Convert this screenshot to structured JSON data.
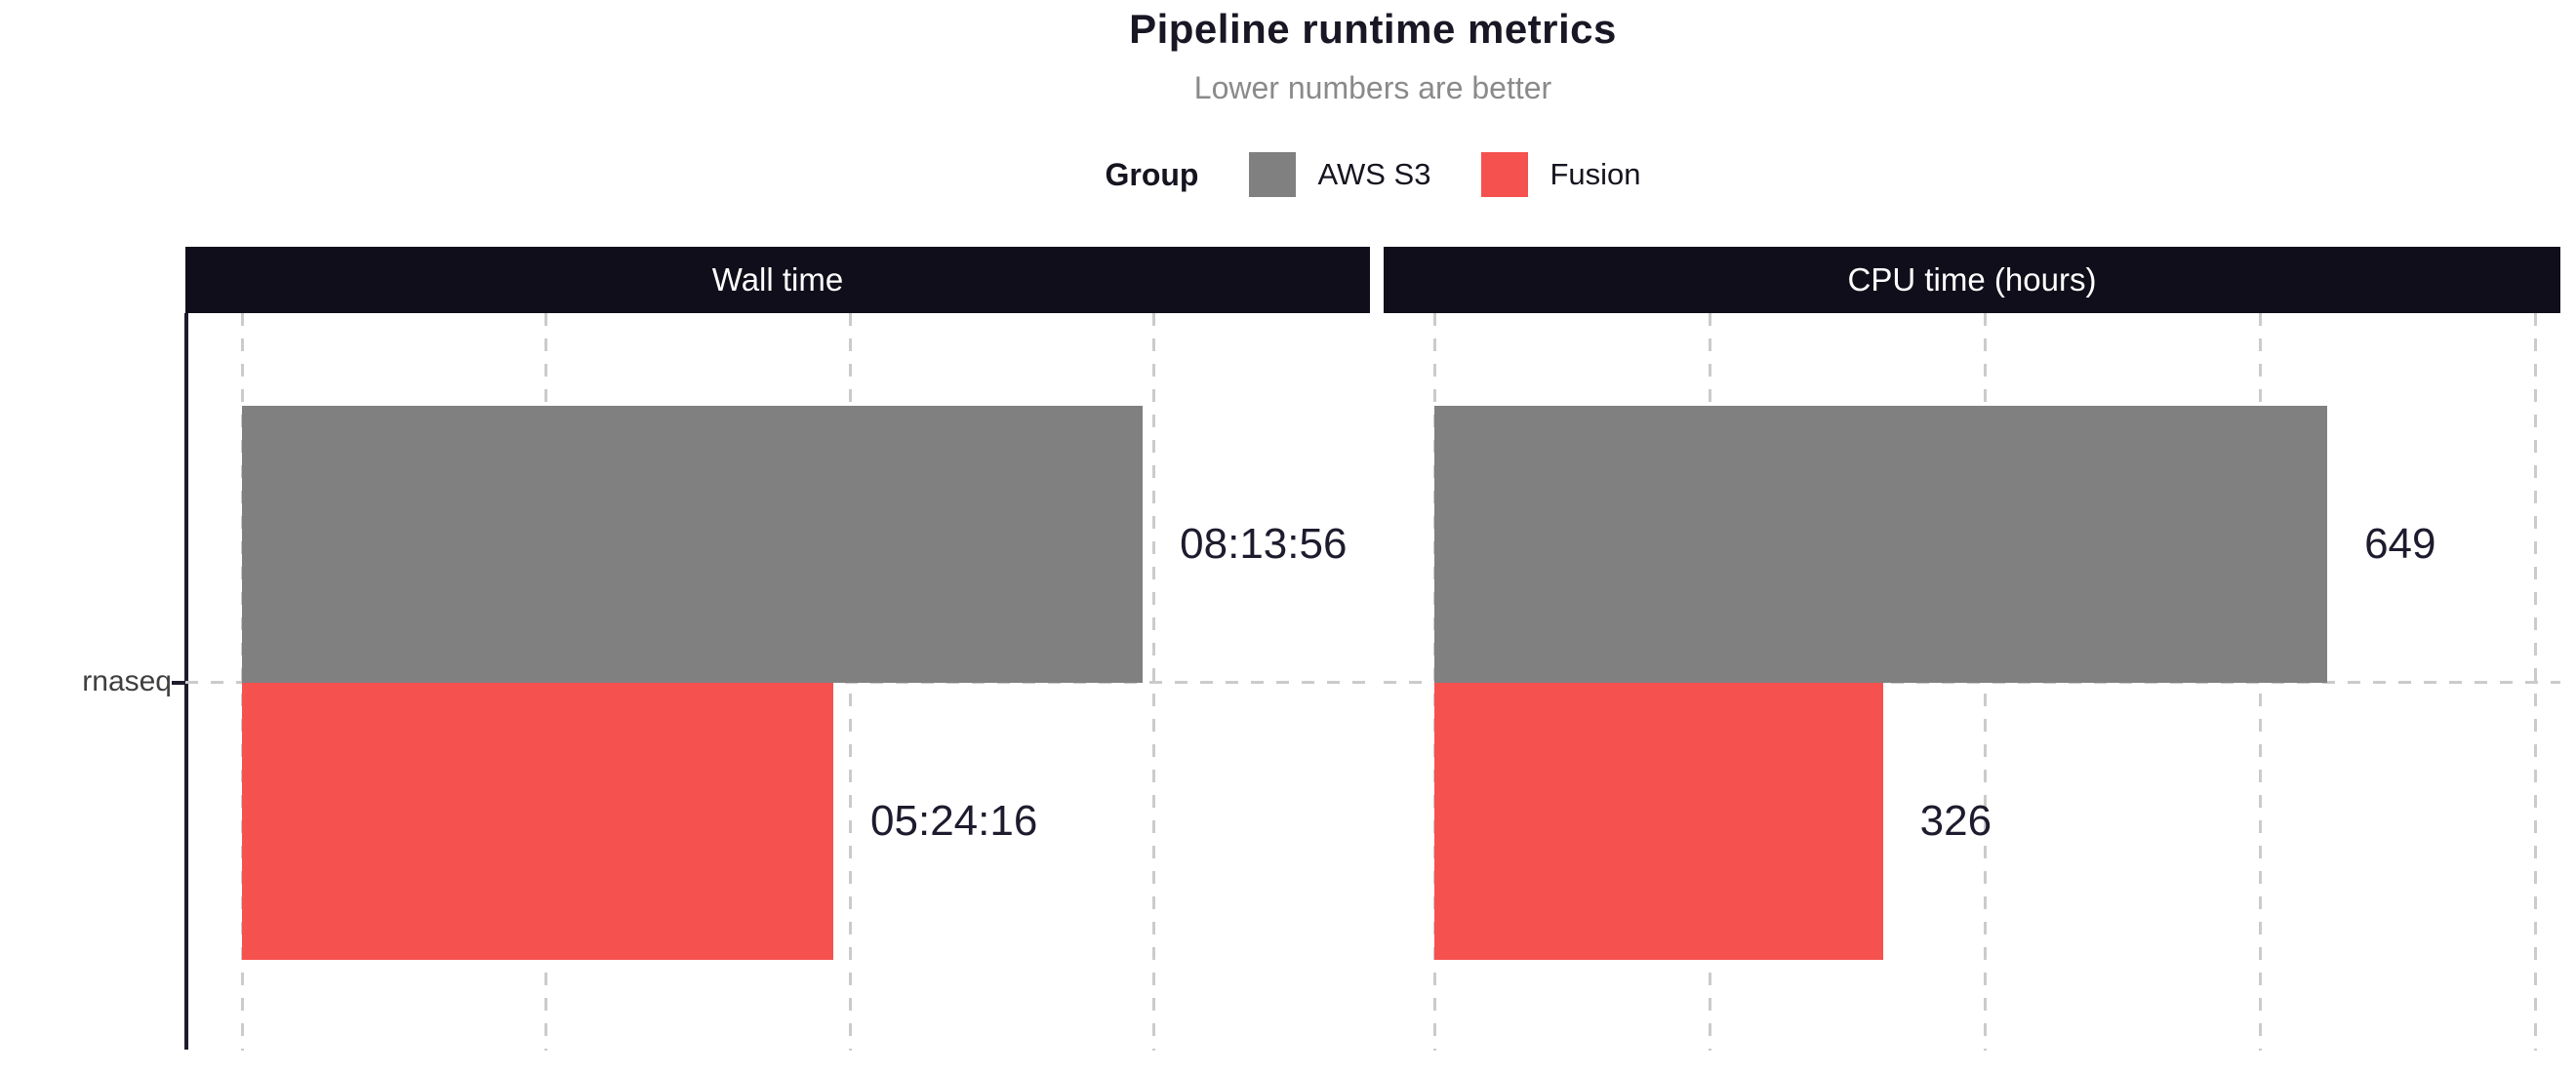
{
  "chart_data": {
    "type": "bar",
    "orientation": "horizontal",
    "faceted": true,
    "title": "Pipeline runtime metrics",
    "subtitle": "Lower numbers are better",
    "legend": {
      "title": "Group",
      "position": "top"
    },
    "categories": [
      "rnaseq"
    ],
    "groups": [
      {
        "name": "AWS S3",
        "color": "#808080"
      },
      {
        "name": "Fusion",
        "color": "#f5514f"
      }
    ],
    "facets": [
      {
        "label": "Wall time",
        "unit": "hh:mm:ss (seconds on axis)",
        "axis": {
          "min": 0,
          "gridline_every": 10000,
          "gridlines": [
            0,
            10000,
            20000,
            30000
          ]
        },
        "bars": [
          {
            "group": "AWS S3",
            "category": "rnaseq",
            "value": 29636,
            "label": "08:13:56"
          },
          {
            "group": "Fusion",
            "category": "rnaseq",
            "value": 19456,
            "label": "05:24:16"
          }
        ]
      },
      {
        "label": "CPU time (hours)",
        "unit": "hours",
        "axis": {
          "min": 0,
          "gridline_every": 200,
          "gridlines": [
            0,
            200,
            400,
            600,
            800
          ]
        },
        "bars": [
          {
            "group": "AWS S3",
            "category": "rnaseq",
            "value": 649,
            "label": "649"
          },
          {
            "group": "Fusion",
            "category": "rnaseq",
            "value": 326,
            "label": "326"
          }
        ]
      }
    ],
    "grid": "dashed",
    "theme": {
      "strip_background": "#110e1b",
      "strip_text": "#ffffff",
      "gridline_color": "#cbcbcb",
      "axis_color": "#1d1b2c",
      "title_color": "#1a1725",
      "subtitle_color": "#8a8a8a"
    }
  }
}
